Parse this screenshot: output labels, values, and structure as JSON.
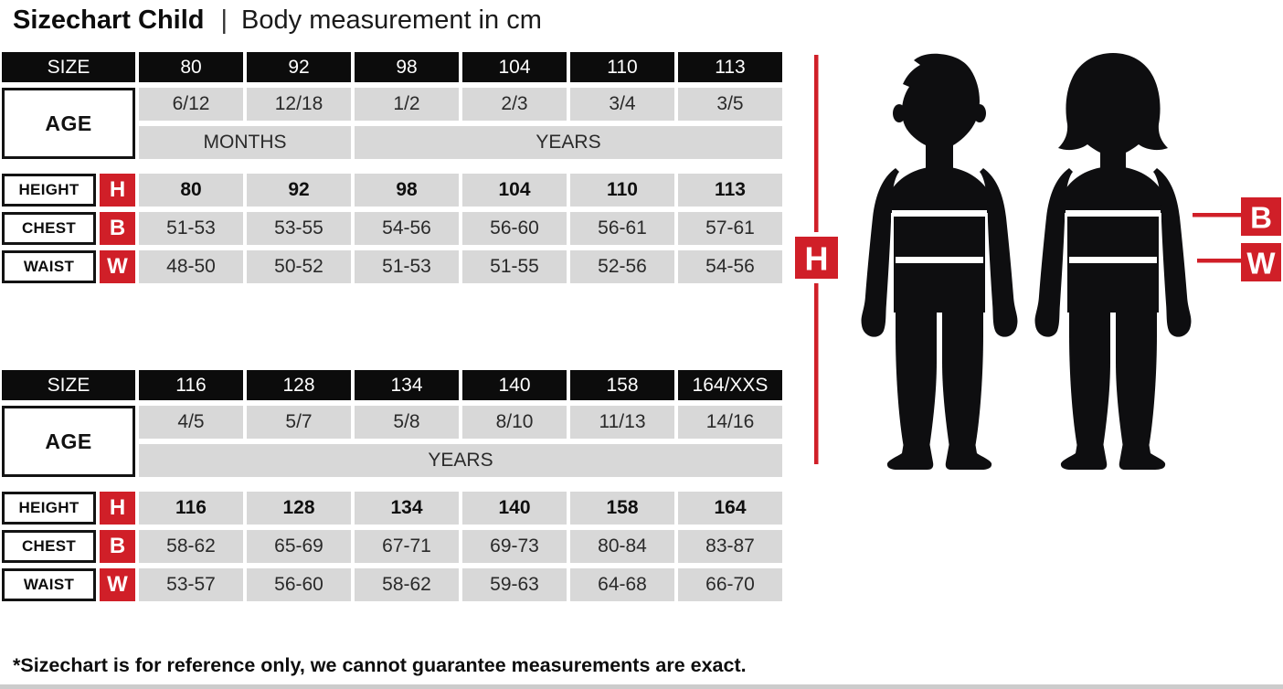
{
  "title": {
    "main": "Sizechart Child",
    "separator": "|",
    "subtitle": "Body measurement in cm"
  },
  "chart_data": [
    {
      "type": "table",
      "size_row": {
        "header": "SIZE",
        "values": [
          "80",
          "92",
          "98",
          "104",
          "110",
          "113"
        ]
      },
      "age_row": {
        "header": "AGE",
        "values": [
          "6/12",
          "12/18",
          "1/2",
          "2/3",
          "3/4",
          "3/5"
        ]
      },
      "period_row": [
        {
          "label": "MONTHS",
          "span": 2
        },
        {
          "label": "YEARS",
          "span": 4
        }
      ],
      "measure_rows": [
        {
          "label": "HEIGHT",
          "badge": "H",
          "bold": true,
          "values": [
            "80",
            "92",
            "98",
            "104",
            "110",
            "113"
          ]
        },
        {
          "label": "CHEST",
          "badge": "B",
          "bold": false,
          "values": [
            "51-53",
            "53-55",
            "54-56",
            "56-60",
            "56-61",
            "57-61"
          ]
        },
        {
          "label": "WAIST",
          "badge": "W",
          "bold": false,
          "values": [
            "48-50",
            "50-52",
            "51-53",
            "51-55",
            "52-56",
            "54-56"
          ]
        }
      ]
    },
    {
      "type": "table",
      "size_row": {
        "header": "SIZE",
        "values": [
          "116",
          "128",
          "134",
          "140",
          "158",
          "164/XXS"
        ]
      },
      "age_row": {
        "header": "AGE",
        "values": [
          "4/5",
          "5/7",
          "5/8",
          "8/10",
          "11/13",
          "14/16"
        ]
      },
      "period_row": [
        {
          "label": "YEARS",
          "span": 6
        }
      ],
      "measure_rows": [
        {
          "label": "HEIGHT",
          "badge": "H",
          "bold": true,
          "values": [
            "116",
            "128",
            "134",
            "140",
            "158",
            "164"
          ]
        },
        {
          "label": "CHEST",
          "badge": "B",
          "bold": false,
          "values": [
            "58-62",
            "65-69",
            "67-71",
            "69-73",
            "80-84",
            "83-87"
          ]
        },
        {
          "label": "WAIST",
          "badge": "W",
          "bold": false,
          "values": [
            "53-57",
            "56-60",
            "58-62",
            "59-63",
            "64-68",
            "66-70"
          ]
        }
      ]
    }
  ],
  "figure": {
    "height_badge": "H",
    "chest_badge": "B",
    "waist_badge": "W"
  },
  "footnote": "*Sizechart is for reference only, we cannot guarantee measurements are exact.",
  "colors": {
    "accent_red": "#d01f28",
    "cell_gray": "#d8d8d8",
    "header_black": "#0c0c0c",
    "silhouette_black": "#0e0e10"
  }
}
